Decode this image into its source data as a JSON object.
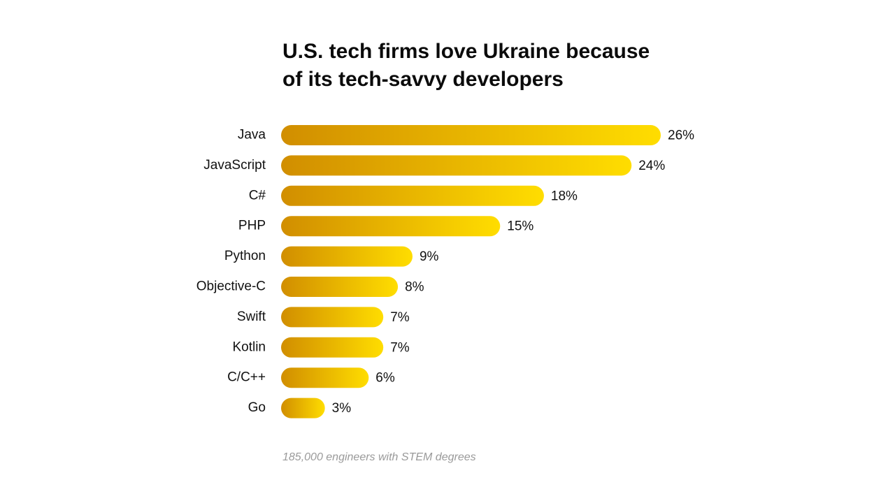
{
  "title_lines": [
    "U.S. tech firms love Ukraine because",
    "of its tech-savvy developers"
  ],
  "footnote": "185,000 engineers with STEM degrees",
  "colors": {
    "bar_start": "#D18E00",
    "bar_end": "#FFDD00",
    "text": "#111111",
    "footnote": "#9a9a9a"
  },
  "chart_data": {
    "type": "bar",
    "orientation": "horizontal",
    "title": "U.S. tech firms love Ukraine because of its tech-savvy developers",
    "categories": [
      "Java",
      "JavaScript",
      "C#",
      "PHP",
      "Python",
      "Objective-C",
      "Swift",
      "Kotlin",
      "C/C++",
      "Go"
    ],
    "values": [
      26,
      24,
      18,
      15,
      9,
      8,
      7,
      7,
      6,
      3
    ],
    "value_labels": [
      "26%",
      "24%",
      "18%",
      "15%",
      "9%",
      "8%",
      "7%",
      "7%",
      "6%",
      "3%"
    ],
    "unit": "%",
    "xlabel": "",
    "ylabel": "",
    "xlim": [
      0,
      26
    ],
    "grid": false
  }
}
